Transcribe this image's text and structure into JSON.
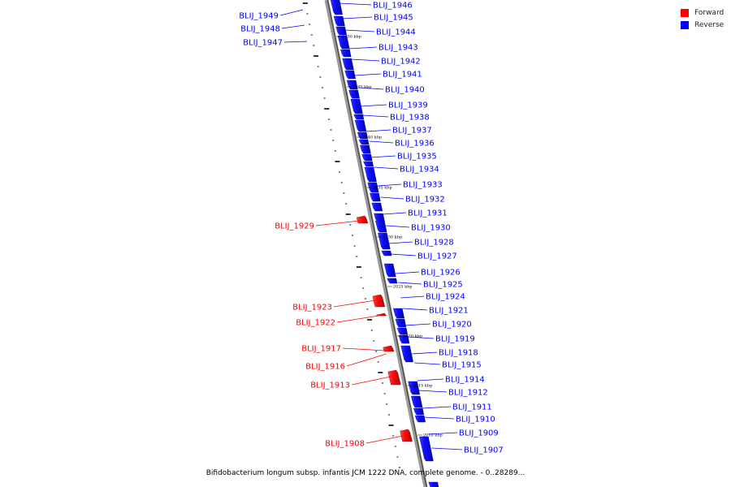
{
  "legend": {
    "forward_label": "Forward",
    "reverse_label": "Reverse",
    "forward_color": "#ff0000",
    "reverse_color": "#0000ff"
  },
  "caption": "Bifidobacterium longum subsp. infantis JCM 1222 DNA, complete genome. - 0..28289...",
  "scale_marks": [
    "2050 kbp",
    "2045 kbp",
    "2040 kbp",
    "2035 kbp",
    "2030 kbp",
    "2025 kbp",
    "2020 kbp",
    "2015 kbp",
    "2010 kbp"
  ],
  "genes": {
    "reverse": [
      "BLIJ_1946",
      "BLIJ_1945",
      "BLIJ_1944",
      "BLIJ_1943",
      "BLIJ_1942",
      "BLIJ_1941",
      "BLIJ_1940",
      "BLIJ_1939",
      "BLIJ_1938",
      "BLIJ_1937",
      "BLIJ_1936",
      "BLIJ_1935",
      "BLIJ_1934",
      "BLIJ_1933",
      "BLIJ_1932",
      "BLIJ_1931",
      "BLIJ_1930",
      "BLIJ_1928",
      "BLIJ_1927",
      "BLIJ_1926",
      "BLIJ_1925",
      "BLIJ_1924",
      "BLIJ_1921",
      "BLIJ_1920",
      "BLIJ_1919",
      "BLIJ_1918",
      "BLIJ_1915",
      "BLIJ_1914",
      "BLIJ_1912",
      "BLIJ_1911",
      "BLIJ_1910",
      "BLIJ_1909",
      "BLIJ_1907"
    ],
    "reverse_left": [
      "BLIJ_1949",
      "BLIJ_1948",
      "BLIJ_1947"
    ],
    "forward": [
      "BLIJ_1929",
      "BLIJ_1923",
      "BLIJ_1922",
      "BLIJ_1917",
      "BLIJ_1916",
      "BLIJ_1913",
      "BLIJ_1908"
    ]
  }
}
